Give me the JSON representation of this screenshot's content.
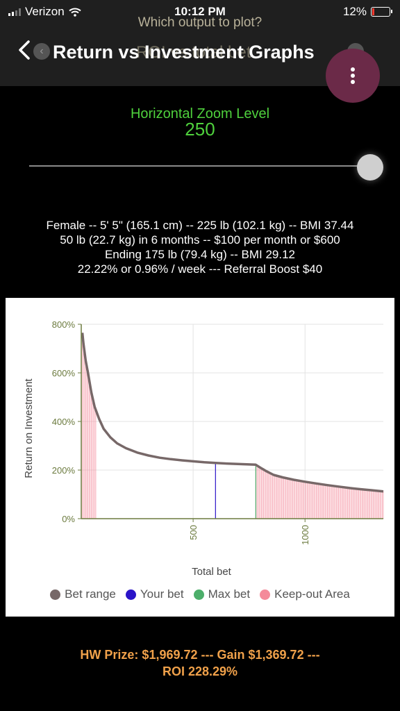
{
  "status_bar": {
    "carrier": "Verizon",
    "time": "10:12 PM",
    "battery": "12%"
  },
  "nav": {
    "title": "Return vs Investment Graphs",
    "picker_question": "Which output to plot?",
    "picker_selected": "ROI vs total bet",
    "back_icon": "chevron-left-icon",
    "menu_icon": "more-vertical-icon"
  },
  "zoom": {
    "label": "Horizontal Zoom Level",
    "value": "250",
    "slider_fraction": 1.0
  },
  "info": {
    "line1": "Female -- 5' 5\" (165.1 cm) -- 225 lb (102.1 kg) -- BMI 37.44",
    "line2": "50 lb (22.7 kg) in 6 months -- $100 per month or $600",
    "line3": "Ending 175 lb (79.4 kg) -- BMI 29.12",
    "line4": "22.22% or 0.96% / week --- Referral Boost $40"
  },
  "colors": {
    "accent_green": "#4fd13d",
    "prize_orange": "#f0a14a",
    "bet_range": "#776868",
    "your_bet": "#2a14c8",
    "max_bet": "#4cae6a",
    "keep_out": "#f48a9a"
  },
  "chart_data": {
    "type": "line",
    "xlabel": "Total bet",
    "ylabel": "Return on Investment",
    "xlim": [
      0,
      1350
    ],
    "ylim": [
      0,
      800
    ],
    "x_ticks": [
      500,
      1000
    ],
    "x_tick_labels": [
      "500",
      "1000"
    ],
    "y_ticks": [
      0,
      200,
      400,
      600,
      800
    ],
    "y_tick_labels": [
      "0%",
      "200%",
      "400%",
      "600%",
      "800%"
    ],
    "grid": true,
    "legend_position": "bottom",
    "legend": [
      "Bet range",
      "Your bet",
      "Max bet",
      "Keep-out Area"
    ],
    "series": [
      {
        "name": "Bet range",
        "x": [
          5,
          10,
          20,
          30,
          45,
          60,
          80,
          100,
          130,
          160,
          200,
          250,
          300,
          350,
          400,
          450,
          500,
          550,
          600,
          650,
          700,
          750,
          780,
          800,
          830,
          860,
          900,
          950,
          1000,
          1050,
          1100,
          1150,
          1200,
          1250,
          1300,
          1350
        ],
        "y": [
          765,
          720,
          650,
          600,
          520,
          460,
          410,
          370,
          335,
          310,
          290,
          272,
          260,
          251,
          245,
          240,
          236,
          232,
          229,
          227,
          225,
          223,
          222,
          210,
          194,
          180,
          170,
          160,
          152,
          145,
          138,
          132,
          126,
          121,
          117,
          112
        ]
      }
    ],
    "your_bet": 600,
    "max_bet": 780,
    "keep_out_ranges": [
      [
        5,
        65
      ],
      [
        780,
        1350
      ]
    ]
  },
  "footer": {
    "line1": "HW Prize: $1,969.72 --- Gain $1,369.72 ---",
    "line2": "ROI 228.29%"
  }
}
